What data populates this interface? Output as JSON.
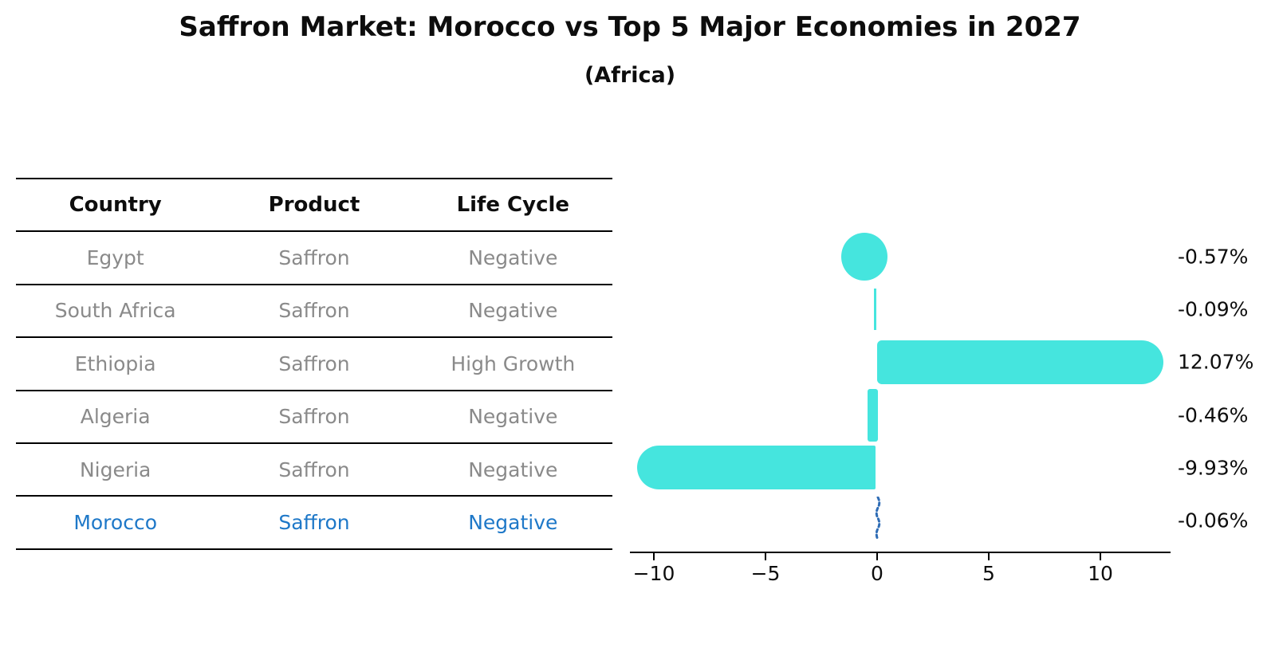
{
  "title": "Saffron Market: Morocco vs Top 5 Major Economies in 2027",
  "subtitle": "(Africa)",
  "table": {
    "headers": [
      "Country",
      "Product",
      "Life Cycle"
    ],
    "rows": [
      {
        "country": "Egypt",
        "product": "Saffron",
        "life_cycle": "Negative",
        "highlight": false
      },
      {
        "country": "South Africa",
        "product": "Saffron",
        "life_cycle": "Negative",
        "highlight": false
      },
      {
        "country": "Ethiopia",
        "product": "Saffron",
        "life_cycle": "High Growth",
        "highlight": false
      },
      {
        "country": "Algeria",
        "product": "Saffron",
        "life_cycle": "Negative",
        "highlight": false
      },
      {
        "country": "Nigeria",
        "product": "Saffron",
        "life_cycle": "Negative",
        "highlight": true
      }
    ],
    "highlight_row": {
      "country": "Morocco",
      "product": "Saffron",
      "life_cycle": "Negative"
    }
  },
  "chart_data": {
    "type": "bar",
    "orientation": "horizontal",
    "categories": [
      "Egypt",
      "South Africa",
      "Ethiopia",
      "Algeria",
      "Nigeria",
      "Morocco"
    ],
    "values": [
      -0.57,
      -0.09,
      12.07,
      -0.46,
      -9.93,
      -0.06
    ],
    "value_labels": [
      "-0.57%",
      "-0.09%",
      "12.07%",
      "-0.46%",
      "-9.93%",
      "-0.06%"
    ],
    "title": "",
    "xlabel": "",
    "ylabel": "",
    "xlim": [
      -11,
      13.2
    ],
    "x_ticks": [
      -10,
      -5,
      0,
      5,
      10
    ],
    "x_tick_labels": [
      "−10",
      "−5",
      "0",
      "5",
      "10"
    ],
    "grid": false,
    "legend": false,
    "bar_color": "#45e5de",
    "highlight_color": "#1e78c8",
    "highlight_bar_color": "#2e6cb5",
    "bar_styles": [
      "blob",
      "thin",
      "rounded-end",
      "stripe",
      "rounded-end",
      "dotted-highlight"
    ]
  },
  "colors": {
    "row_text": "#8a8a8a",
    "header_text": "#0d0d0d",
    "axis": "#000000"
  }
}
